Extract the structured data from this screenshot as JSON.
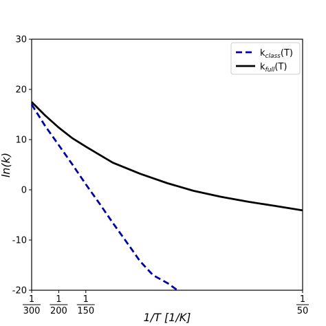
{
  "chart_data": {
    "type": "line",
    "title": "",
    "xlabel": "1/T [1/K]",
    "ylabel": "ln(k)",
    "xlim": [
      0.0033333,
      0.02
    ],
    "ylim": [
      -20,
      30
    ],
    "yticks": [
      -20,
      -10,
      0,
      10,
      20,
      30
    ],
    "ytick_labels": [
      "-20",
      "-10",
      "0",
      "10",
      "20",
      "30"
    ],
    "xticks": [
      {
        "value": 0.0033333,
        "numerator": "1",
        "denominator": "300"
      },
      {
        "value": 0.005,
        "numerator": "1",
        "denominator": "200"
      },
      {
        "value": 0.0066667,
        "numerator": "1",
        "denominator": "150"
      },
      {
        "value": 0.02,
        "numerator": "1",
        "denominator": "50"
      }
    ],
    "grid": false,
    "legend_position": "top-right",
    "series": [
      {
        "key": "class",
        "legend_main": "k",
        "legend_sub": "class",
        "legend_tail": "(T)",
        "color": "#0000aa",
        "style": "dashed",
        "x": [
          0.0033333,
          0.00417,
          0.005,
          0.00583,
          0.0066667,
          0.0075,
          0.00833,
          0.00917,
          0.01,
          0.0108,
          0.0117,
          0.0123
        ],
        "y": [
          17.0,
          12.7,
          8.9,
          5.1,
          1.1,
          -2.7,
          -6.6,
          -10.4,
          -14.2,
          -17.0,
          -18.6,
          -20.0
        ]
      },
      {
        "key": "full",
        "legend_main": "k",
        "legend_sub": "full",
        "legend_tail": "(T)",
        "color": "#000000",
        "style": "solid",
        "x": [
          0.0033333,
          0.00417,
          0.005,
          0.00583,
          0.0066667,
          0.0075,
          0.00833,
          0.01,
          0.0117,
          0.0133,
          0.015,
          0.0167,
          0.0183,
          0.02
        ],
        "y": [
          17.5,
          14.8,
          12.4,
          10.3,
          8.6,
          7.0,
          5.4,
          3.2,
          1.3,
          -0.2,
          -1.4,
          -2.4,
          -3.2,
          -4.1
        ]
      }
    ]
  }
}
